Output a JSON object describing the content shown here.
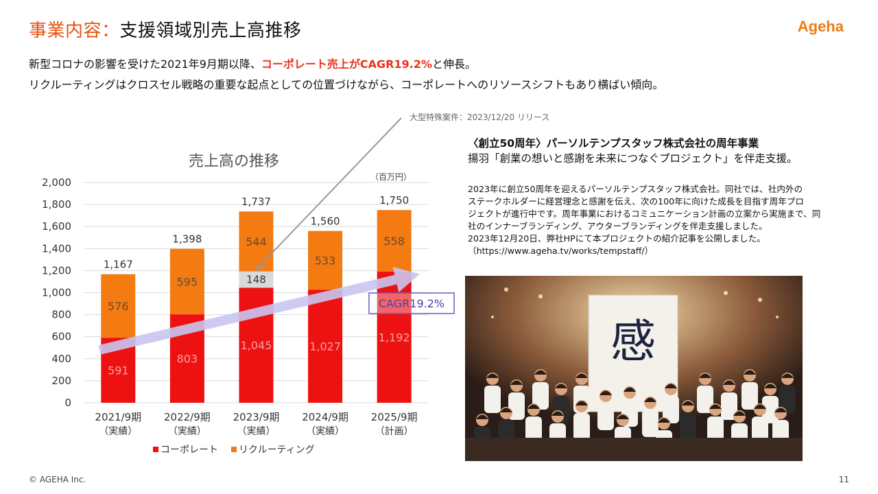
{
  "header": {
    "title_accent": "事業内容：",
    "title_rest": "支援領域別売上高推移",
    "logo": "Ageha"
  },
  "lead": {
    "line1_a": "新型コロナの影響を受けた2021年9月期以降、",
    "line1_hl": "コーポレート売上がCAGR19.2%",
    "line1_b": "と伸長。",
    "line2": "リクルーティングはクロスセル戦略の重要な起点としての位置づけながら、コーポレートへのリソースシフトもあり横ばい傾向。"
  },
  "callout": "大型特殊案件：2023/12/20 リリース",
  "chart_data": {
    "type": "bar",
    "stacked": true,
    "title": "売上高の推移",
    "unit": "（百万円）",
    "categories": [
      "2021/9期",
      "2022/9期",
      "2023/9期",
      "2024/9期",
      "2025/9期"
    ],
    "category_notes": [
      "（実績）",
      "（実績）",
      "（実績）",
      "（実績）",
      "（計画）"
    ],
    "series": [
      {
        "name": "コーポレート",
        "values": [
          591,
          803,
          1045,
          1027,
          1192
        ],
        "color": "#ee1111"
      },
      {
        "name": "",
        "values": [
          0,
          0,
          148,
          0,
          0
        ],
        "color": "#d9d9d9"
      },
      {
        "name": "リクルーティング",
        "values": [
          576,
          595,
          544,
          533,
          558
        ],
        "color": "#f37b12"
      }
    ],
    "totals": [
      1167,
      1398,
      1737,
      1560,
      1750
    ],
    "ylim": [
      0,
      2000
    ],
    "yticks": [
      0,
      200,
      400,
      600,
      800,
      1000,
      1200,
      1400,
      1600,
      1800,
      2000
    ],
    "ytick_labels": [
      "0",
      "200",
      "400",
      "600",
      "800",
      "1,000",
      "1,200",
      "1,400",
      "1,600",
      "1,800",
      "2,000"
    ],
    "value_labels": {
      "corporate": [
        "591",
        "803",
        "1,045",
        "1,027",
        "1,192"
      ],
      "special": [
        "",
        "",
        "148",
        "",
        ""
      ],
      "recruiting": [
        "576",
        "595",
        "544",
        "533",
        "558"
      ],
      "totals": [
        "1,167",
        "1,398",
        "1,737",
        "1,560",
        "1,750"
      ]
    },
    "annotation": "CAGR19.2%",
    "legend_position": "bottom",
    "grid": true
  },
  "right": {
    "title": "〈創立50周年〉パーソルテンプスタッフ株式会社の周年事業",
    "subtitle": "揚羽「創業の想いと感謝を未来につなぐプロジェクト」を伴走支援。",
    "desc_lines": [
      "2023年に創立50周年を迎えるパーソルテンプスタッフ株式会社。同社では、社内外の",
      "ステークホルダーに経営理念と感謝を伝え、次の100年に向けた成長を目指す周年プロ",
      "ジェクトが進行中です。周年事業におけるコミュニケーション計画の立案から実施まで、同",
      "社のインナーブランディング、アウターブランディングを伴走支援しました。",
      "2023年12月20日、弊社HPにて本プロジェクトの紹介記事を公開しました。",
      "（https://www.ageha.tv/works/tempstaff/）"
    ],
    "photo_sign": "感"
  },
  "footer": {
    "copyright": "© AGEHA Inc.",
    "page": "11"
  },
  "colors": {
    "accent": "#e8500f",
    "corporate": "#ee1111",
    "recruiting": "#f37b12",
    "arrow": "#c8c5f0"
  }
}
